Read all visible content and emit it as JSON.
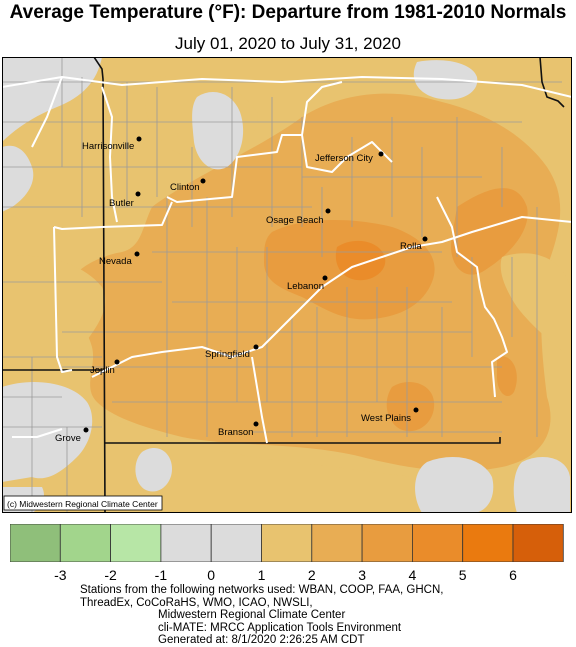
{
  "title": "Average Temperature (°F): Departure from 1981-2010 Normals",
  "subtitle": "July 01, 2020 to July 31, 2020",
  "copyright": "(c) Midwestern Regional Climate Center",
  "legend": {
    "ticks": [
      "-3",
      "-2",
      "-1",
      "0",
      "1",
      "2",
      "3",
      "4",
      "5",
      "6"
    ],
    "colors": [
      "#8fbf7a",
      "#a2d58c",
      "#b7e6a6",
      "#dcdcdc",
      "#dcdcdc",
      "#e8c36f",
      "#e8ad54",
      "#e89c3f",
      "#ea8c2a",
      "#ea7a0f",
      "#d65f0a"
    ]
  },
  "cities": [
    {
      "name": "Harrisonville"
    },
    {
      "name": "Jefferson City"
    },
    {
      "name": "Clinton"
    },
    {
      "name": "Butler"
    },
    {
      "name": "Osage Beach"
    },
    {
      "name": "Rolla"
    },
    {
      "name": "Nevada"
    },
    {
      "name": "Lebanon"
    },
    {
      "name": "Springfield"
    },
    {
      "name": "Joplin"
    },
    {
      "name": "West Plains"
    },
    {
      "name": "Branson"
    },
    {
      "name": "Grove"
    }
  ],
  "footer": {
    "line1": "Stations from the following networks used: WBAN, COOP, FAA, GHCN,",
    "line2": "ThreadEx, CoCoRaHS, WMO, ICAO, NWSLI,",
    "line3": "Midwestern Regional Climate Center",
    "line4": "cli-MATE: MRCC Application Tools Environment",
    "line5": "Generated at: 8/1/2020 2:26:25 AM CDT"
  }
}
